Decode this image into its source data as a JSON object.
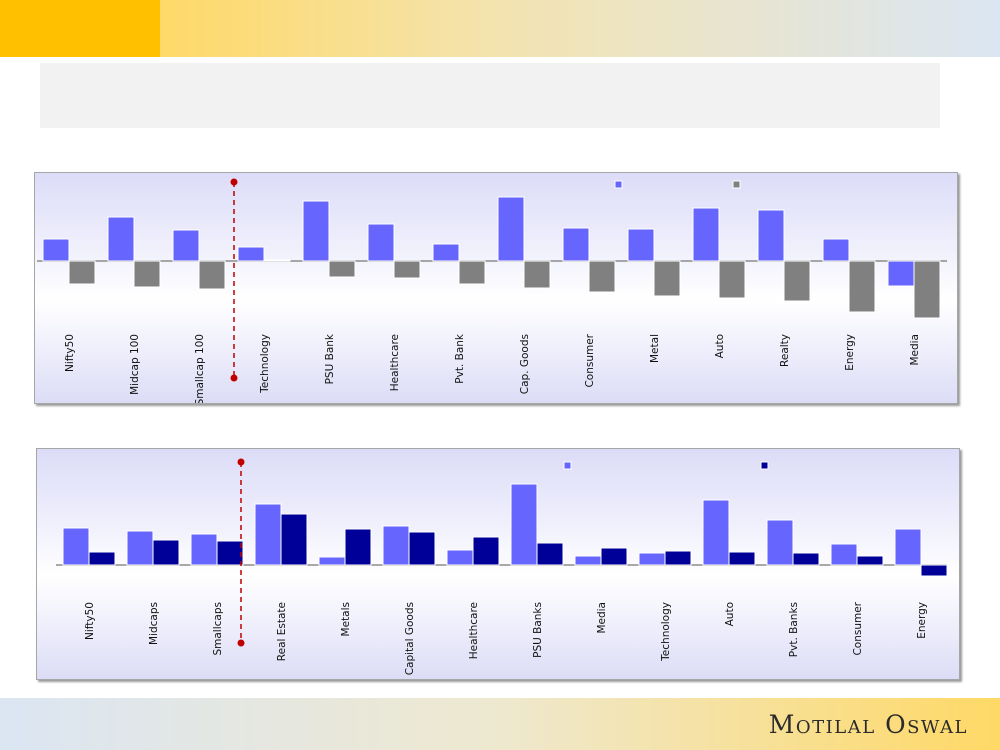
{
  "header": {},
  "footer": {
    "logo_text": "Motilal Oswal"
  },
  "colors": {
    "series_a": "#6666ff",
    "series_b_chart1": "#808080",
    "series_b_chart2": "#000099",
    "marker": "#c00000",
    "header_accent": "#ffc000"
  },
  "chart_data": [
    {
      "type": "bar",
      "title": "",
      "categories": [
        "Nifty50",
        "Midcap 100",
        "Smallcap 100",
        "Technology",
        "PSU Bank",
        "Healthcare",
        "Pvt. Bank",
        "Cap. Goods",
        "Consumer",
        "Metal",
        "Auto",
        "Realty",
        "Energy",
        "Media"
      ],
      "series": [
        {
          "name": "",
          "values": [
            22,
            44,
            31,
            14,
            60,
            37,
            17,
            64,
            33,
            32,
            53,
            51,
            22,
            -25
          ]
        },
        {
          "name": "",
          "values": [
            -23,
            -26,
            -28,
            1,
            -16,
            -17,
            -23,
            -27,
            -31,
            -35,
            -37,
            -40,
            -51,
            -57
          ]
        }
      ],
      "ylim": [
        -60,
        70
      ],
      "grid": false,
      "legend": "top-right",
      "separator_after_index": 2
    },
    {
      "type": "bar",
      "title": "",
      "categories": [
        "Nifty50",
        "Midcaps",
        "Smallcaps",
        "Real Estate",
        "Metals",
        "Capital Goods",
        "Healthcare",
        "PSU Banks",
        "Media",
        "Technology",
        "Auto",
        "Pvt. Banks",
        "Consumer",
        "Energy"
      ],
      "series": [
        {
          "name": "",
          "values": [
            37,
            34,
            31,
            61,
            8,
            39,
            15,
            81,
            9,
            12,
            65,
            45,
            21,
            36
          ]
        },
        {
          "name": "",
          "values": [
            13,
            25,
            24,
            51,
            36,
            33,
            28,
            22,
            17,
            14,
            13,
            12,
            9,
            -11
          ]
        }
      ],
      "ylim": [
        -20,
        90
      ],
      "grid": false,
      "legend": "top-right",
      "separator_after_index": 2
    }
  ]
}
